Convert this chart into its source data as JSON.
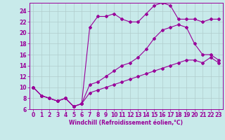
{
  "xlabel": "Windchill (Refroidissement éolien,°C)",
  "bg_color": "#c8eaea",
  "grid_color": "#b0cccc",
  "line_color": "#990099",
  "xlim": [
    -0.5,
    23.5
  ],
  "ylim": [
    6,
    25.5
  ],
  "yticks": [
    6,
    8,
    10,
    12,
    14,
    16,
    18,
    20,
    22,
    24
  ],
  "xticks": [
    0,
    1,
    2,
    3,
    4,
    5,
    6,
    7,
    8,
    9,
    10,
    11,
    12,
    13,
    14,
    15,
    16,
    17,
    18,
    19,
    20,
    21,
    22,
    23
  ],
  "line1_x": [
    0,
    1,
    2,
    3,
    4,
    5,
    6,
    7,
    8,
    9,
    10,
    11,
    12,
    13,
    14,
    15,
    16,
    17,
    18,
    19,
    20,
    21,
    22,
    23
  ],
  "line1_y": [
    10.0,
    8.5,
    8.0,
    7.5,
    8.0,
    6.5,
    7.0,
    9.0,
    9.5,
    10.0,
    10.5,
    11.0,
    11.5,
    12.0,
    12.5,
    13.0,
    13.5,
    14.0,
    14.5,
    15.0,
    15.0,
    14.5,
    15.5,
    14.5
  ],
  "line2_x": [
    0,
    1,
    2,
    3,
    4,
    5,
    6,
    7,
    8,
    9,
    10,
    11,
    12,
    13,
    14,
    15,
    16,
    17,
    18,
    19,
    20,
    21,
    22,
    23
  ],
  "line2_y": [
    10.0,
    8.5,
    8.0,
    7.5,
    8.0,
    6.5,
    7.0,
    10.5,
    11.0,
    12.0,
    13.0,
    14.0,
    14.5,
    15.5,
    17.0,
    19.0,
    20.5,
    21.0,
    21.5,
    21.0,
    18.0,
    16.0,
    16.0,
    15.0
  ],
  "line3_x": [
    0,
    1,
    2,
    3,
    4,
    5,
    6,
    7,
    8,
    9,
    10,
    11,
    12,
    13,
    14,
    15,
    16,
    17,
    18,
    19,
    20,
    21,
    22,
    23
  ],
  "line3_y": [
    10.0,
    8.5,
    8.0,
    7.5,
    8.0,
    6.5,
    7.0,
    21.0,
    23.0,
    23.0,
    23.5,
    22.5,
    22.0,
    22.0,
    23.5,
    25.0,
    25.5,
    25.0,
    22.5,
    22.5,
    22.5,
    22.0,
    22.5,
    22.5
  ],
  "marker_size": 2.0,
  "line_width": 0.8,
  "tick_fontsize": 5.5,
  "xlabel_fontsize": 5.5
}
